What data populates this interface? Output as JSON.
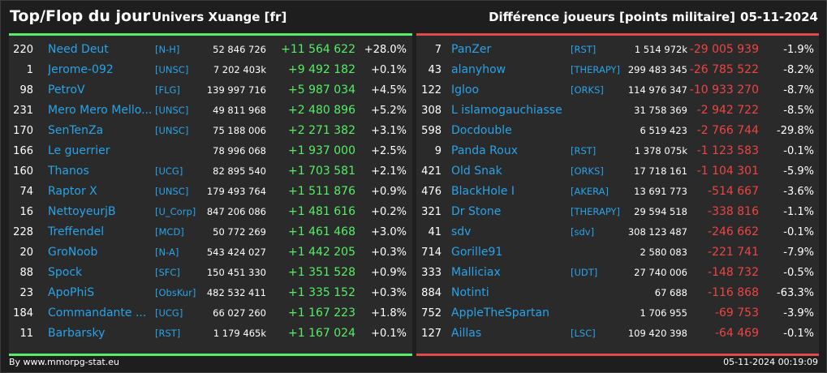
{
  "header": {
    "title": "Top/Flop du jour",
    "universe": "Univers Xuange [fr]",
    "difference": "Différence joueurs [points militaire]",
    "date": "05-11-2024"
  },
  "colors": {
    "gain": "#55ee66",
    "loss": "#ee4444",
    "link": "#29a3e8"
  },
  "top": [
    {
      "rank": "220",
      "name": "Need Deut",
      "tag": "[N-H]",
      "points": "52 846 726",
      "delta": "+11 564 622",
      "pct": "+28.0%"
    },
    {
      "rank": "1",
      "name": "Jerome-092",
      "tag": "[UNSC]",
      "points": "7 202 403k",
      "delta": "+9 492 182",
      "pct": "+0.1%"
    },
    {
      "rank": "98",
      "name": "PetroV",
      "tag": "[FLG]",
      "points": "139 997 716",
      "delta": "+5 987 034",
      "pct": "+4.5%"
    },
    {
      "rank": "231",
      "name": "Mero Mero Mello...",
      "tag": "[UNSC]",
      "points": "49 811 968",
      "delta": "+2 480 896",
      "pct": "+5.2%"
    },
    {
      "rank": "170",
      "name": "SenTenZa",
      "tag": "[UNSC]",
      "points": "75 188 006",
      "delta": "+2 271 382",
      "pct": "+3.1%"
    },
    {
      "rank": "166",
      "name": "Le guerrier",
      "tag": "",
      "points": "78 996 068",
      "delta": "+1 937 000",
      "pct": "+2.5%"
    },
    {
      "rank": "160",
      "name": "Thanos",
      "tag": "[UCG]",
      "points": "82 895 540",
      "delta": "+1 703 581",
      "pct": "+2.1%"
    },
    {
      "rank": "74",
      "name": "Raptor X",
      "tag": "[UNSC]",
      "points": "179 493 764",
      "delta": "+1 511 876",
      "pct": "+0.9%"
    },
    {
      "rank": "16",
      "name": "NettoyeurjB",
      "tag": "[U_Corp]",
      "points": "847 206 086",
      "delta": "+1 481 616",
      "pct": "+0.2%"
    },
    {
      "rank": "228",
      "name": "Treffendel",
      "tag": "[MCD]",
      "points": "50 772 269",
      "delta": "+1 461 468",
      "pct": "+3.0%"
    },
    {
      "rank": "20",
      "name": "GroNoob",
      "tag": "[N-A]",
      "points": "543 424 027",
      "delta": "+1 442 205",
      "pct": "+0.3%"
    },
    {
      "rank": "88",
      "name": "Spock",
      "tag": "[SFC]",
      "points": "150 451 330",
      "delta": "+1 351 528",
      "pct": "+0.9%"
    },
    {
      "rank": "23",
      "name": "ApoPhiS",
      "tag": "[ObsKur]",
      "points": "482 532 411",
      "delta": "+1 335 152",
      "pct": "+0.3%"
    },
    {
      "rank": "184",
      "name": "Commandante ...",
      "tag": "[UCG]",
      "points": "66 027 260",
      "delta": "+1 167 223",
      "pct": "+1.8%"
    },
    {
      "rank": "11",
      "name": "Barbarsky",
      "tag": "[RST]",
      "points": "1 179 465k",
      "delta": "+1 167 024",
      "pct": "+0.1%"
    }
  ],
  "flop": [
    {
      "rank": "7",
      "name": "PanZer",
      "tag": "[RST]",
      "points": "1 514 972k",
      "delta": "-29 005 939",
      "pct": "-1.9%"
    },
    {
      "rank": "43",
      "name": "alanyhow",
      "tag": "[THERAPY]",
      "points": "299 483 345",
      "delta": "-26 785 522",
      "pct": "-8.2%"
    },
    {
      "rank": "122",
      "name": "Igloo",
      "tag": "[ORKS]",
      "points": "114 976 347",
      "delta": "-10 933 270",
      "pct": "-8.7%"
    },
    {
      "rank": "308",
      "name": "L islamogauchiasse",
      "tag": "",
      "points": "31 758 369",
      "delta": "-2 942 722",
      "pct": "-8.5%"
    },
    {
      "rank": "598",
      "name": "Docdouble",
      "tag": "",
      "points": "6 519 423",
      "delta": "-2 766 744",
      "pct": "-29.8%"
    },
    {
      "rank": "9",
      "name": "Panda Roux",
      "tag": "[RST]",
      "points": "1 378 075k",
      "delta": "-1 123 583",
      "pct": "-0.1%"
    },
    {
      "rank": "421",
      "name": "Old Snak",
      "tag": "[ORKS]",
      "points": "17 718 161",
      "delta": "-1 104 301",
      "pct": "-5.9%"
    },
    {
      "rank": "476",
      "name": "BlackHole I",
      "tag": "[AKERA]",
      "points": "13 691 773",
      "delta": "-514 667",
      "pct": "-3.6%"
    },
    {
      "rank": "321",
      "name": "Dr Stone",
      "tag": "[THERAPY]",
      "points": "29 594 518",
      "delta": "-338 816",
      "pct": "-1.1%"
    },
    {
      "rank": "41",
      "name": "sdv",
      "tag": "[sdv]",
      "points": "308 123 487",
      "delta": "-246 662",
      "pct": "-0.1%"
    },
    {
      "rank": "714",
      "name": "Gorille91",
      "tag": "",
      "points": "2 580 083",
      "delta": "-221 741",
      "pct": "-7.9%"
    },
    {
      "rank": "333",
      "name": "Malliciax",
      "tag": "[UDT]",
      "points": "27 740 006",
      "delta": "-148 732",
      "pct": "-0.5%"
    },
    {
      "rank": "884",
      "name": "Notinti",
      "tag": "",
      "points": "67 688",
      "delta": "-116 868",
      "pct": "-63.3%"
    },
    {
      "rank": "752",
      "name": "AppleTheSpartan",
      "tag": "",
      "points": "1 706 955",
      "delta": "-69 753",
      "pct": "-3.9%"
    },
    {
      "rank": "127",
      "name": "Aillas",
      "tag": "[LSC]",
      "points": "109 420 398",
      "delta": "-64 469",
      "pct": "-0.1%"
    }
  ],
  "footer": {
    "credit": "By www.mmorpg-stat.eu",
    "timestamp": "05-11-2024 00:19:09"
  }
}
